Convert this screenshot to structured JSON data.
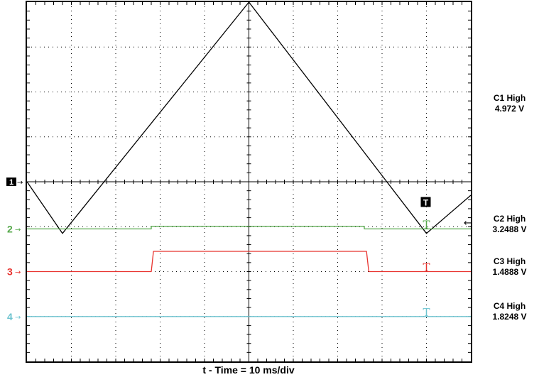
{
  "chart_data": {
    "type": "line",
    "xlabel": "t - Time = 10 ms/div",
    "ylabel": "",
    "xlim": [
      0,
      10
    ],
    "ylim": [
      -4,
      4
    ],
    "grid": true,
    "series": [
      {
        "name": "1",
        "color": "#000000",
        "x": [
          0,
          0.8,
          5.0,
          9.0,
          10.0
        ],
        "y": [
          0.0,
          -1.15,
          4.0,
          -1.15,
          -0.3
        ]
      },
      {
        "name": "2",
        "color": "#55a84a",
        "x": [
          0,
          2.8,
          2.8,
          7.6,
          7.6,
          10.0
        ],
        "y": [
          -1.05,
          -1.05,
          -0.99,
          -0.99,
          -1.05,
          -1.05
        ]
      },
      {
        "name": "3",
        "color": "#e8332f",
        "x": [
          0,
          2.8,
          2.85,
          7.65,
          7.7,
          10.0
        ],
        "y": [
          -2.0,
          -2.0,
          -1.55,
          -1.55,
          -2.0,
          -2.0
        ]
      },
      {
        "name": "4",
        "color": "#6cc3cf",
        "x": [
          0,
          10.0
        ],
        "y": [
          -3.0,
          -3.0
        ]
      }
    ],
    "markers": {
      "trigger_position": "T",
      "channel_labels": [
        "1",
        "2",
        "3",
        "4"
      ]
    },
    "measurements": [
      {
        "label": "C1 High",
        "value": "4.972 V"
      },
      {
        "label": "C2 High",
        "value": "3.2488 V"
      },
      {
        "label": "C3 High",
        "value": "1.4888 V"
      },
      {
        "label": "C4 High",
        "value": "1.8248 V"
      }
    ]
  }
}
